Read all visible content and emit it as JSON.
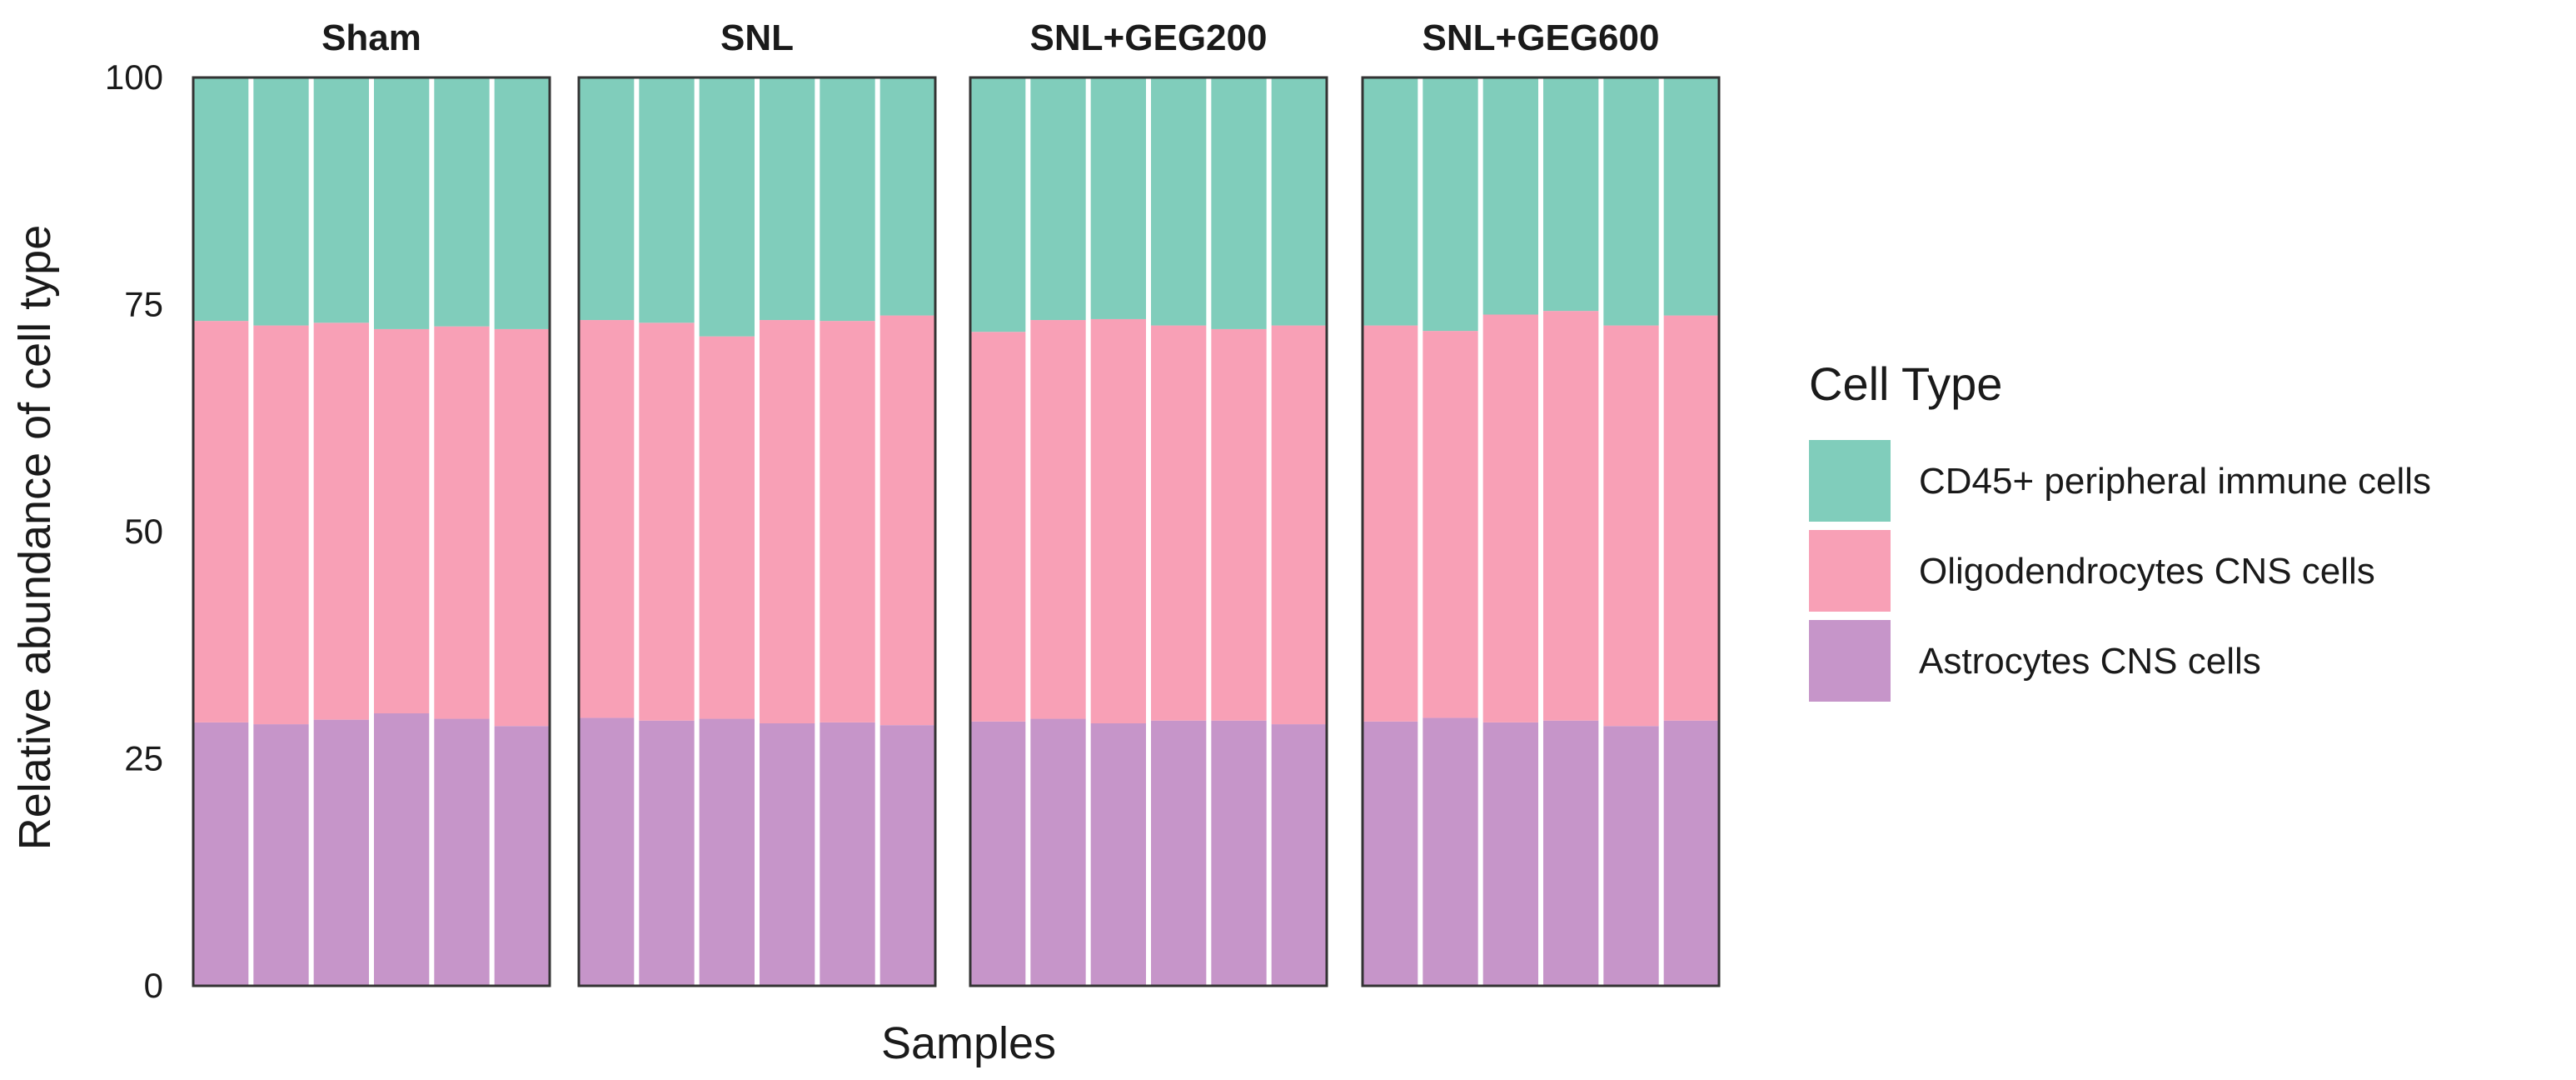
{
  "chart_data": {
    "type": "bar",
    "stacked": true,
    "xlabel": "Samples",
    "ylabel": "Relative abundance of cell type",
    "ylim": [
      0,
      100
    ],
    "yticks": [
      0,
      25,
      50,
      75,
      100
    ],
    "legend": {
      "title": "Cell Type",
      "placement": "right",
      "entries": [
        {
          "name": "CD45+ peripheral immune cells",
          "color": "#80cdbb"
        },
        {
          "name": "Oligodendrocytes CNS cells",
          "color": "#f8a0b6"
        },
        {
          "name": "Astrocytes CNS cells",
          "color": "#c695c9"
        }
      ]
    },
    "facets": [
      {
        "name": "Sham",
        "bars": [
          {
            "astro": 29.0,
            "oligo": 44.2
          },
          {
            "astro": 28.8,
            "oligo": 43.9
          },
          {
            "astro": 29.3,
            "oligo": 43.7
          },
          {
            "astro": 30.0,
            "oligo": 42.3
          },
          {
            "astro": 29.4,
            "oligo": 43.2
          },
          {
            "astro": 28.6,
            "oligo": 43.7
          }
        ]
      },
      {
        "name": "SNL",
        "bars": [
          {
            "astro": 29.5,
            "oligo": 43.8
          },
          {
            "astro": 29.2,
            "oligo": 43.8
          },
          {
            "astro": 29.4,
            "oligo": 42.1
          },
          {
            "astro": 28.9,
            "oligo": 44.4
          },
          {
            "astro": 29.0,
            "oligo": 44.2
          },
          {
            "astro": 28.7,
            "oligo": 45.1
          }
        ]
      },
      {
        "name": "SNL+GEG200",
        "bars": [
          {
            "astro": 29.1,
            "oligo": 42.9
          },
          {
            "astro": 29.4,
            "oligo": 43.9
          },
          {
            "astro": 28.9,
            "oligo": 44.5
          },
          {
            "astro": 29.2,
            "oligo": 43.5
          },
          {
            "astro": 29.2,
            "oligo": 43.1
          },
          {
            "astro": 28.8,
            "oligo": 43.9
          }
        ]
      },
      {
        "name": "SNL+GEG600",
        "bars": [
          {
            "astro": 29.1,
            "oligo": 43.6
          },
          {
            "astro": 29.5,
            "oligo": 42.6
          },
          {
            "astro": 29.0,
            "oligo": 44.9
          },
          {
            "astro": 29.2,
            "oligo": 45.1
          },
          {
            "astro": 28.6,
            "oligo": 44.1
          },
          {
            "astro": 29.2,
            "oligo": 44.6
          }
        ]
      }
    ]
  }
}
